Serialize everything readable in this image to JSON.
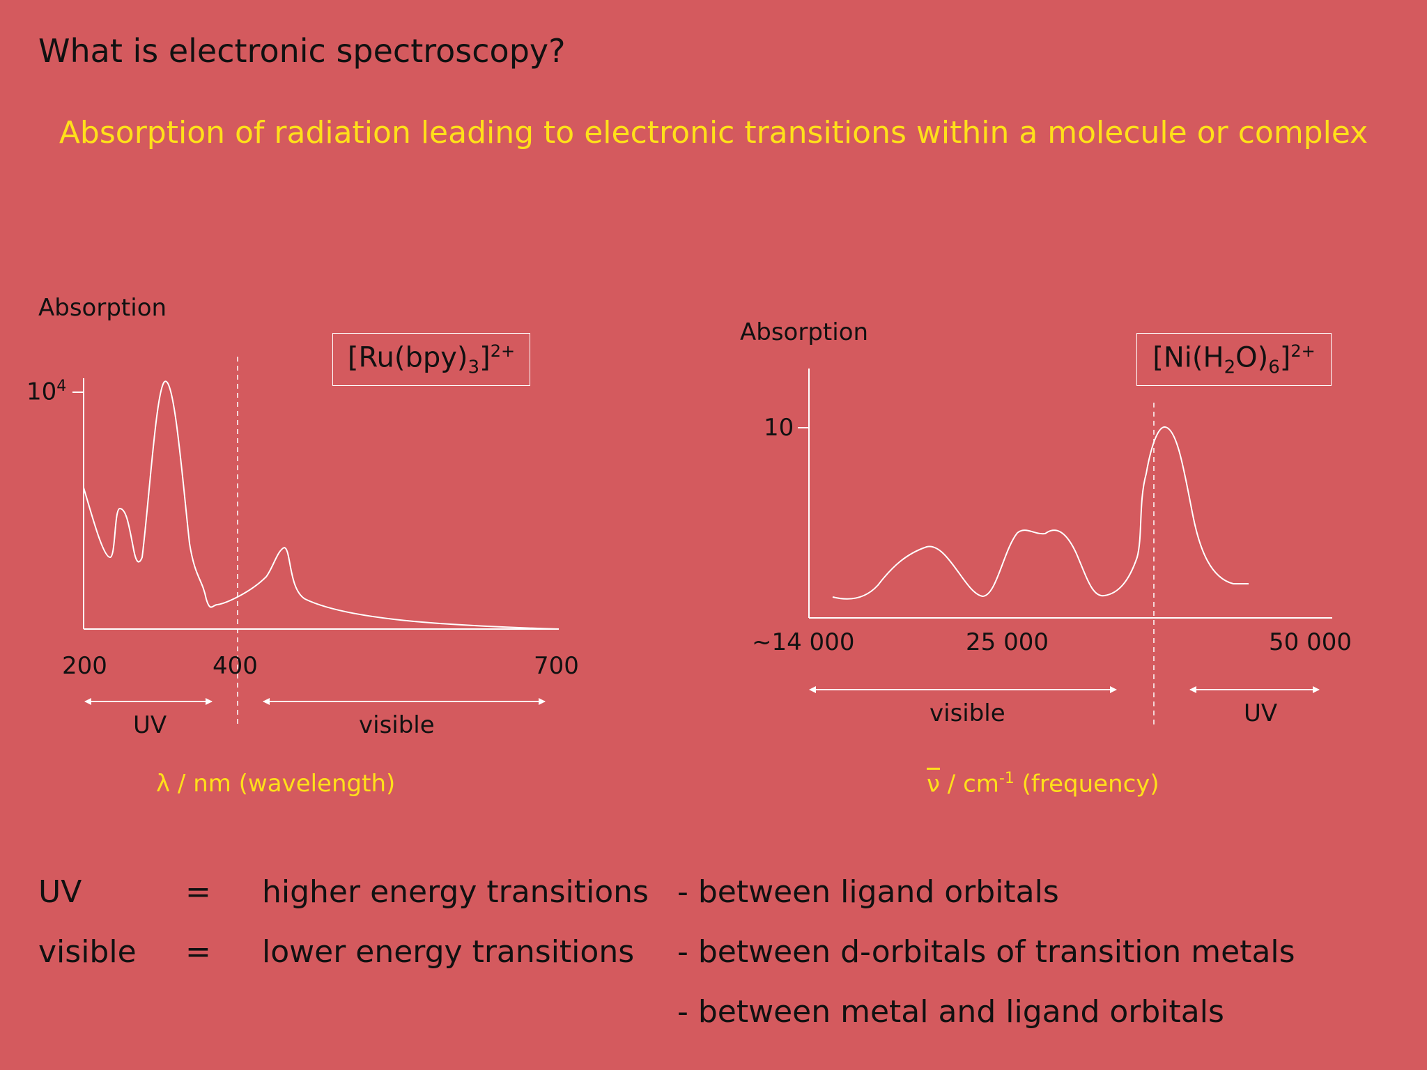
{
  "slide": {
    "title": "What is electronic spectroscopy?",
    "subtitle": "Absorption of radiation leading to electronic transitions within a molecule or complex"
  },
  "left_spectrum": {
    "ylabel": "Absorption",
    "formula": {
      "pre": "[Ru(bpy)",
      "sub": "3",
      "mid": "]",
      "sup": "2+"
    },
    "y_tick": {
      "base": "10",
      "sup": "4"
    },
    "x_ticks": [
      "200",
      "400",
      "700"
    ],
    "regions": [
      "UV",
      "visible"
    ],
    "axis_title": "λ / nm (wavelength)"
  },
  "right_spectrum": {
    "ylabel": "Absorption",
    "formula": {
      "pre": "[Ni(H",
      "sub": "2",
      "mid": "O)",
      "sub2": "6",
      "post": "]",
      "sup": "2+"
    },
    "y_tick": "10",
    "x_ticks": [
      "~14 000",
      "25 000",
      "50 000"
    ],
    "regions": [
      "visible",
      "UV"
    ],
    "axis_symbol": "ν",
    "axis_title_rest": " / cm",
    "axis_title_sup": "-1",
    "axis_title_end": " (frequency)"
  },
  "summary": {
    "rows": [
      {
        "term": "UV",
        "eq": "=",
        "desc": "higher energy transitions",
        "detail": "- between ligand orbitals"
      },
      {
        "term": "visible",
        "eq": "=",
        "desc": "lower energy transitions",
        "detail": "- between d-orbitals of transition metals"
      },
      {
        "term": "",
        "eq": "",
        "desc": "",
        "detail": "- between metal and ligand orbitals"
      }
    ]
  },
  "colors": {
    "background": "#d45a5e",
    "accent": "#ffe01a",
    "lines": "#ffffff"
  }
}
